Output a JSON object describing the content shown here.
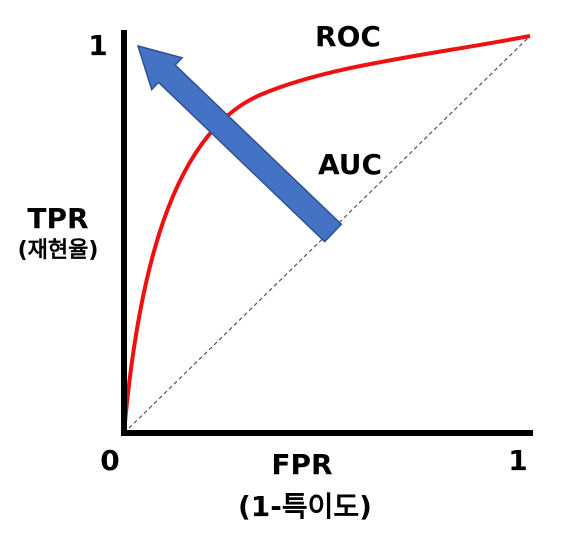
{
  "axes": {
    "y_max": "1",
    "origin": "0",
    "x_max": "1",
    "y_title": "TPR",
    "y_subtitle": "(재현율)",
    "x_title": "FPR",
    "x_subtitle": "(1-특이도)"
  },
  "labels": {
    "curve": "ROC",
    "area": "AUC"
  }
}
